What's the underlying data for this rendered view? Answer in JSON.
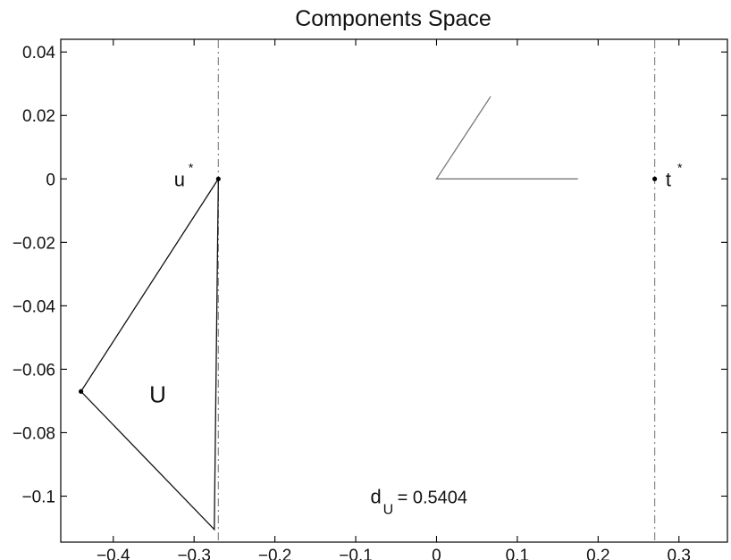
{
  "chart_data": {
    "type": "line",
    "title": "Components Space",
    "xlabel": "",
    "ylabel": "",
    "xlim": [
      -0.465,
      0.36
    ],
    "ylim": [
      -0.1145,
      0.044
    ],
    "grid": false,
    "legend": "none",
    "x_ticks": [
      -0.4,
      -0.3,
      -0.2,
      -0.1,
      0,
      0.1,
      0.2,
      0.3
    ],
    "x_tick_labels": [
      "−0.4",
      "−0.3",
      "−0.2",
      "−0.1",
      "0",
      "0.1",
      "0.2",
      "0.3"
    ],
    "y_ticks": [
      0.04,
      0.02,
      0,
      -0.02,
      -0.04,
      -0.06,
      -0.08,
      -0.1
    ],
    "y_tick_labels": [
      "0.04",
      "0.02",
      "0",
      "−0.02",
      "−0.04",
      "−0.06",
      "−0.08",
      "−0.1"
    ],
    "series": [
      {
        "color": "#111111",
        "closed": true,
        "points": [
          [
            -0.27,
            0.0
          ],
          [
            -0.44,
            -0.067
          ],
          [
            -0.275,
            -0.1105
          ],
          [
            -0.27,
            0.0
          ]
        ]
      },
      {
        "color": "#777777",
        "closed": false,
        "points": [
          [
            0.067,
            0.026
          ],
          [
            0.0,
            0.0
          ],
          [
            0.175,
            0.0
          ]
        ]
      }
    ],
    "vlines": [
      {
        "x": -0.27,
        "style": "dash-dot",
        "color": "#888888"
      },
      {
        "x": 0.27,
        "style": "dash-dot",
        "color": "#888888"
      }
    ],
    "points": [
      {
        "x": -0.27,
        "y": 0.0
      },
      {
        "x": 0.27,
        "y": 0.0
      },
      {
        "x": -0.44,
        "y": -0.067
      }
    ],
    "annotations": [
      {
        "base": "u",
        "sup": "*",
        "x": -0.318,
        "y": 0.0
      },
      {
        "base": "t",
        "sup": "*",
        "x": 0.287,
        "y": 0.0
      },
      {
        "text": "U",
        "x": -0.345,
        "y": -0.0685
      },
      {
        "base": "d",
        "sub": "U",
        "rest": " = 0.5404",
        "x": -0.075,
        "y": -0.1
      }
    ]
  }
}
